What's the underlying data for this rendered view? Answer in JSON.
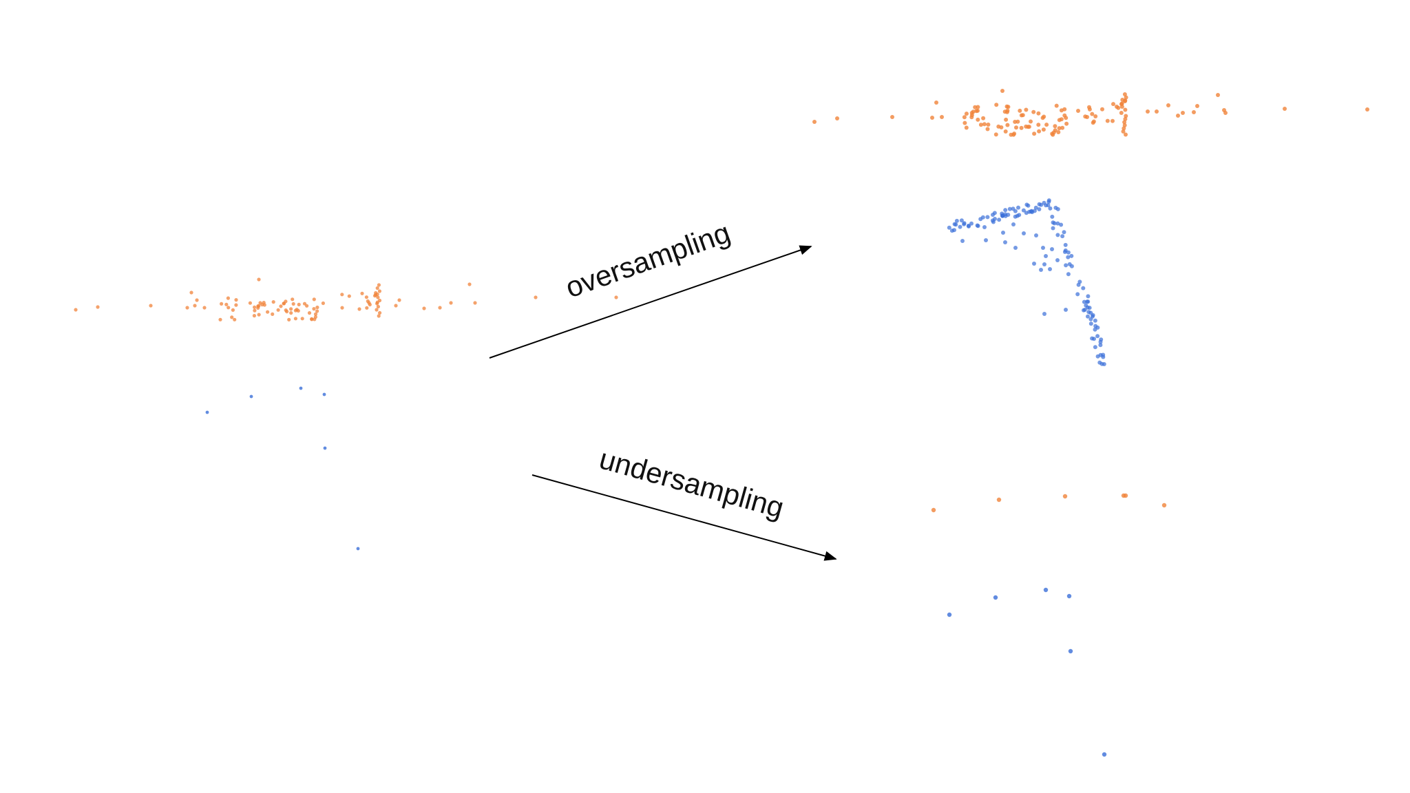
{
  "labels": {
    "oversampling": "oversampling",
    "undersampling": "undersampling"
  },
  "colors": {
    "majority": "#f0833a",
    "minority": "#3b6fd8",
    "arrow": "#000000",
    "background": "#ffffff"
  }
}
